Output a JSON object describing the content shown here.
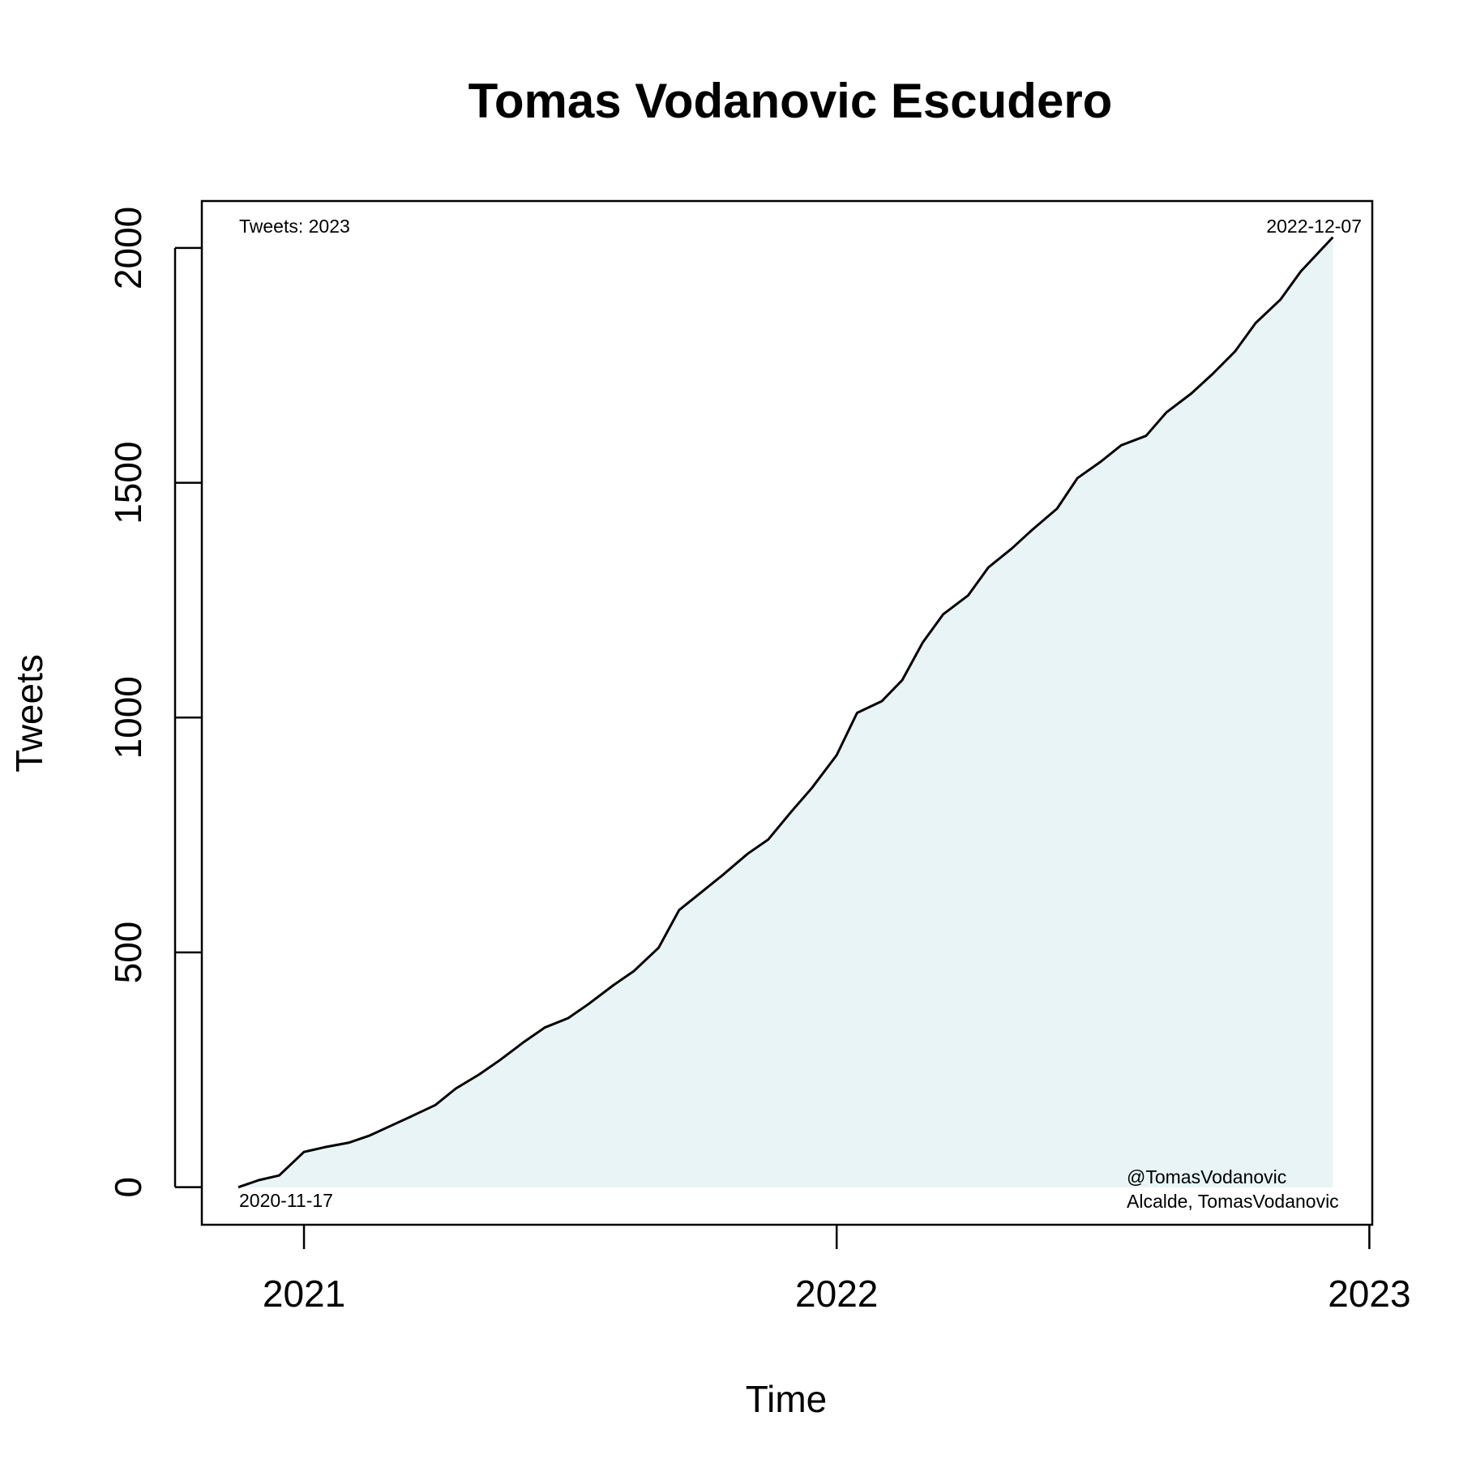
{
  "colors": {
    "line": "#000000",
    "fill": "#e8f4f6",
    "background": "#ffffff"
  },
  "chart_data": {
    "type": "area",
    "title": "Tomas Vodanovic Escudero",
    "xlabel": "Time",
    "ylabel": "Tweets",
    "x_ticks": [
      "2021",
      "2022",
      "2023"
    ],
    "y_ticks": [
      0,
      500,
      1000,
      1500,
      2000
    ],
    "xlim": [
      "2020-10-23",
      "2023-01-03"
    ],
    "ylim": [
      -80,
      2100
    ],
    "grid": false,
    "annotations": {
      "top_left": "Tweets: 2023",
      "top_right": "2022-12-07",
      "bottom_left": "2020-11-17",
      "bottom_right_1": "@TomasVodanovic",
      "bottom_right_2": "Alcalde, TomasVodanovic"
    },
    "series": [
      {
        "x": [
          "2020-11-17",
          "2020-12-01",
          "2020-12-15",
          "2021-01-01",
          "2021-01-15",
          "2021-02-01",
          "2021-02-15",
          "2021-03-01",
          "2021-03-15",
          "2021-04-01",
          "2021-04-15",
          "2021-05-01",
          "2021-05-15",
          "2021-06-01",
          "2021-06-15",
          "2021-07-01",
          "2021-07-15",
          "2021-08-01",
          "2021-08-15",
          "2021-09-01",
          "2021-09-15",
          "2021-10-01",
          "2021-10-15",
          "2021-11-01",
          "2021-11-15",
          "2021-12-01",
          "2021-12-15",
          "2022-01-01",
          "2022-01-15",
          "2022-02-01",
          "2022-02-15",
          "2022-03-01",
          "2022-03-15",
          "2022-04-01",
          "2022-04-15",
          "2022-05-01",
          "2022-05-15",
          "2022-06-01",
          "2022-06-15",
          "2022-07-01",
          "2022-07-15",
          "2022-08-01",
          "2022-08-15",
          "2022-09-01",
          "2022-09-15",
          "2022-10-01",
          "2022-10-15",
          "2022-11-01",
          "2022-11-15",
          "2022-12-07"
        ],
        "y": [
          0,
          15,
          25,
          75,
          85,
          95,
          110,
          130,
          150,
          175,
          210,
          240,
          270,
          310,
          340,
          360,
          390,
          430,
          460,
          510,
          590,
          630,
          665,
          710,
          740,
          800,
          850,
          920,
          1010,
          1035,
          1080,
          1160,
          1220,
          1260,
          1320,
          1360,
          1400,
          1445,
          1510,
          1545,
          1580,
          1600,
          1650,
          1690,
          1730,
          1780,
          1840,
          1890,
          1950,
          2023
        ]
      }
    ]
  }
}
